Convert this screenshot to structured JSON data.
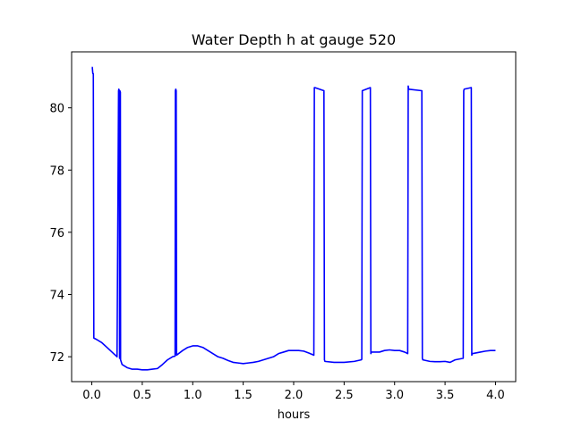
{
  "chart_data": {
    "type": "line",
    "title": "Water Depth h at gauge 520",
    "xlabel": "hours",
    "ylabel": "",
    "xlim": [
      -0.2,
      4.2
    ],
    "ylim": [
      71.2,
      81.8
    ],
    "xticks": [
      0.0,
      0.5,
      1.0,
      1.5,
      2.0,
      2.5,
      3.0,
      3.5,
      4.0
    ],
    "xtick_labels": [
      "0.0",
      "0.5",
      "1.0",
      "1.5",
      "2.0",
      "2.5",
      "3.0",
      "3.5",
      "4.0"
    ],
    "yticks": [
      72,
      74,
      76,
      78,
      80
    ],
    "ytick_labels": [
      "72",
      "74",
      "76",
      "78",
      "80"
    ],
    "grid": false,
    "series": [
      {
        "color": "#0000ff",
        "x": [
          0.0,
          0.005,
          0.01,
          0.015,
          0.02,
          0.05,
          0.1,
          0.15,
          0.2,
          0.25,
          0.265,
          0.268,
          0.272,
          0.275,
          0.278,
          0.283,
          0.285,
          0.3,
          0.35,
          0.4,
          0.45,
          0.5,
          0.55,
          0.6,
          0.65,
          0.7,
          0.75,
          0.8,
          0.825,
          0.828,
          0.832,
          0.836,
          0.84,
          0.9,
          0.95,
          1.0,
          1.05,
          1.1,
          1.15,
          1.2,
          1.25,
          1.3,
          1.35,
          1.4,
          1.45,
          1.5,
          1.55,
          1.6,
          1.65,
          1.7,
          1.75,
          1.8,
          1.85,
          1.9,
          1.95,
          2.0,
          2.05,
          2.1,
          2.15,
          2.2,
          2.205,
          2.21,
          2.3,
          2.305,
          2.31,
          2.4,
          2.5,
          2.6,
          2.67,
          2.675,
          2.68,
          2.76,
          2.765,
          2.77,
          2.85,
          2.9,
          2.95,
          3.0,
          3.05,
          3.1,
          3.13,
          3.135,
          3.14,
          3.27,
          3.275,
          3.28,
          3.35,
          3.4,
          3.45,
          3.5,
          3.55,
          3.6,
          3.68,
          3.685,
          3.69,
          3.76,
          3.765,
          3.77,
          3.85,
          3.9,
          3.95,
          4.0
        ],
        "y": [
          81.3,
          81.3,
          81.1,
          81.1,
          72.6,
          72.55,
          72.45,
          72.3,
          72.15,
          72.0,
          80.55,
          80.6,
          80.55,
          71.95,
          80.55,
          80.5,
          71.9,
          71.75,
          71.65,
          71.6,
          71.6,
          71.58,
          71.58,
          71.6,
          71.62,
          71.75,
          71.9,
          72.0,
          72.02,
          80.55,
          80.6,
          80.55,
          72.05,
          72.2,
          72.3,
          72.35,
          72.35,
          72.3,
          72.2,
          72.1,
          72.0,
          71.95,
          71.88,
          71.82,
          71.8,
          71.78,
          71.8,
          71.82,
          71.85,
          71.9,
          71.95,
          72.0,
          72.1,
          72.15,
          72.2,
          72.2,
          72.2,
          72.18,
          72.12,
          72.05,
          80.65,
          80.65,
          80.55,
          71.9,
          71.85,
          71.82,
          71.82,
          71.85,
          71.9,
          71.92,
          80.55,
          80.65,
          72.1,
          72.15,
          72.15,
          72.2,
          72.22,
          72.2,
          72.2,
          72.15,
          72.1,
          80.7,
          80.6,
          80.55,
          71.95,
          71.9,
          71.85,
          71.84,
          71.84,
          71.85,
          71.82,
          71.9,
          71.95,
          80.55,
          80.6,
          80.65,
          72.05,
          72.1,
          72.15,
          72.18,
          72.2,
          72.2
        ]
      }
    ]
  }
}
